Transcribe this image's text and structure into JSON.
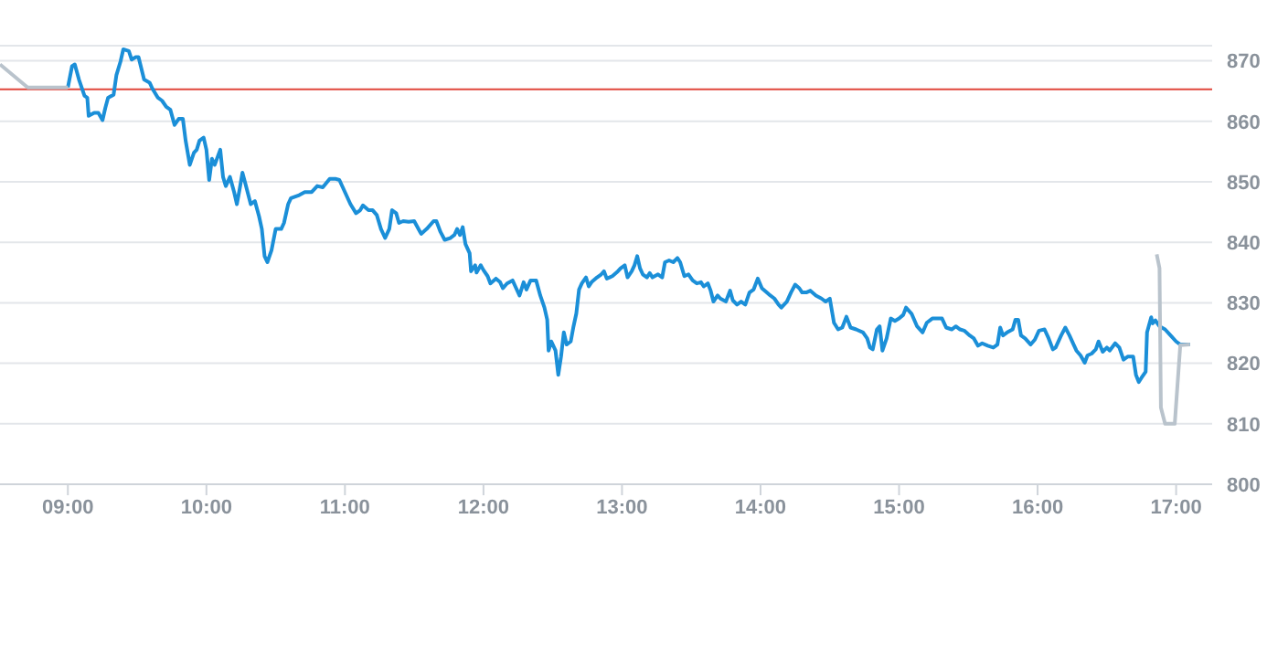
{
  "chart_data": {
    "type": "line",
    "xlim": [
      8.51,
      17.26
    ],
    "ylim": [
      800,
      872.5
    ],
    "xticks": [
      {
        "value": 9,
        "label": "09:00"
      },
      {
        "value": 10,
        "label": "10:00"
      },
      {
        "value": 11,
        "label": "11:00"
      },
      {
        "value": 12,
        "label": "12:00"
      },
      {
        "value": 13,
        "label": "13:00"
      },
      {
        "value": 14,
        "label": "14:00"
      },
      {
        "value": 15,
        "label": "15:00"
      },
      {
        "value": 16,
        "label": "16:00"
      },
      {
        "value": 17,
        "label": "17:00"
      }
    ],
    "yticks": [
      800,
      810,
      820,
      830,
      840,
      850,
      860,
      870
    ],
    "grid": "y",
    "marker": "none",
    "line_style": "solid",
    "ref_lines": [
      {
        "axis": "y",
        "value": 865.3,
        "color": "#e0463b"
      }
    ],
    "series": [
      {
        "color": "#1b8fd8",
        "x": [
          9.0,
          9.03,
          9.05,
          9.08,
          9.12,
          9.14,
          9.15,
          9.19,
          9.22,
          9.25,
          9.27,
          9.29,
          9.33,
          9.35,
          9.38,
          9.4,
          9.44,
          9.46,
          9.49,
          9.51,
          9.55,
          9.59,
          9.61,
          9.65,
          9.68,
          9.71,
          9.74,
          9.77,
          9.8,
          9.83,
          9.85,
          9.88,
          9.91,
          9.93,
          9.95,
          9.98,
          10.0,
          10.02,
          10.04,
          10.06,
          10.1,
          10.12,
          10.14,
          10.17,
          10.2,
          10.22,
          10.24,
          10.26,
          10.28,
          10.32,
          10.35,
          10.38,
          10.4,
          10.42,
          10.44,
          10.47,
          10.5,
          10.54,
          10.56,
          10.59,
          10.61,
          10.67,
          10.71,
          10.76,
          10.8,
          10.84,
          10.89,
          10.93,
          10.96,
          11.0,
          11.04,
          11.08,
          11.11,
          11.13,
          11.17,
          11.2,
          11.23,
          11.26,
          11.29,
          11.32,
          11.34,
          11.37,
          11.39,
          11.42,
          11.46,
          11.5,
          11.55,
          11.59,
          11.64,
          11.66,
          11.69,
          11.72,
          11.76,
          11.79,
          11.81,
          11.83,
          11.85,
          11.87,
          11.9,
          11.91,
          11.94,
          11.95,
          11.98,
          12.0,
          12.03,
          12.05,
          12.09,
          12.12,
          12.14,
          12.17,
          12.21,
          12.23,
          12.26,
          12.29,
          12.31,
          12.34,
          12.38,
          12.41,
          12.44,
          12.46,
          12.47,
          12.49,
          12.52,
          12.54,
          12.56,
          12.58,
          12.6,
          12.63,
          12.65,
          12.67,
          12.69,
          12.71,
          12.74,
          12.76,
          12.78,
          12.82,
          12.85,
          12.87,
          12.89,
          12.91,
          12.93,
          12.97,
          12.99,
          13.02,
          13.04,
          13.07,
          13.09,
          13.11,
          13.13,
          13.15,
          13.18,
          13.2,
          13.22,
          13.26,
          13.29,
          13.31,
          13.34,
          13.37,
          13.4,
          13.42,
          13.45,
          13.48,
          13.51,
          13.54,
          13.57,
          13.59,
          13.62,
          13.64,
          13.66,
          13.69,
          13.71,
          13.75,
          13.78,
          13.8,
          13.83,
          13.86,
          13.89,
          13.92,
          13.95,
          13.98,
          14.01,
          14.06,
          14.1,
          14.13,
          14.15,
          14.19,
          14.22,
          14.25,
          14.28,
          14.3,
          14.33,
          14.36,
          14.4,
          14.44,
          14.47,
          14.5,
          14.53,
          14.56,
          14.59,
          14.62,
          14.65,
          14.69,
          14.74,
          14.77,
          14.79,
          14.81,
          14.84,
          14.86,
          14.88,
          14.91,
          14.94,
          14.97,
          15.0,
          15.03,
          15.05,
          15.09,
          15.13,
          15.17,
          15.2,
          15.24,
          15.31,
          15.34,
          15.38,
          15.41,
          15.44,
          15.47,
          15.51,
          15.54,
          15.57,
          15.6,
          15.64,
          15.68,
          15.71,
          15.73,
          15.75,
          15.78,
          15.82,
          15.84,
          15.86,
          15.88,
          15.91,
          15.95,
          15.98,
          16.01,
          16.05,
          16.08,
          16.11,
          16.13,
          16.17,
          16.2,
          16.23,
          16.26,
          16.28,
          16.31,
          16.34,
          16.36,
          16.39,
          16.42,
          16.44,
          16.47,
          16.5,
          16.52,
          16.56,
          16.59,
          16.62,
          16.65,
          16.69,
          16.71,
          16.73,
          16.75,
          16.78,
          16.79,
          16.82,
          16.83,
          16.85,
          16.88,
          16.92,
          16.96,
          17.0,
          17.03,
          17.07,
          17.1
        ],
        "values": [
          865.6,
          869.1,
          869.4,
          866.9,
          864.2,
          863.9,
          860.9,
          861.4,
          861.4,
          860.2,
          862.2,
          863.9,
          864.4,
          867.6,
          869.9,
          871.9,
          871.6,
          870.2,
          870.6,
          870.6,
          866.9,
          866.4,
          865.4,
          863.9,
          863.4,
          862.4,
          861.9,
          859.4,
          860.4,
          860.4,
          856.8,
          852.8,
          854.8,
          855.3,
          856.8,
          857.3,
          855.3,
          850.3,
          853.8,
          852.8,
          855.3,
          850.8,
          849.3,
          850.8,
          848.3,
          846.3,
          848.8,
          851.5,
          849.8,
          846.3,
          846.8,
          844.3,
          842.2,
          837.7,
          836.7,
          838.7,
          842.2,
          842.2,
          843.2,
          846.3,
          847.3,
          847.8,
          848.3,
          848.3,
          849.3,
          849.1,
          850.5,
          850.5,
          850.3,
          848.3,
          846.3,
          844.8,
          845.3,
          846.1,
          845.3,
          845.3,
          844.5,
          842.2,
          840.7,
          842.2,
          845.3,
          844.8,
          843.2,
          843.5,
          843.4,
          843.5,
          841.4,
          842.2,
          843.5,
          843.5,
          841.7,
          840.4,
          840.7,
          841.2,
          842.2,
          841.2,
          842.5,
          839.7,
          838.2,
          835.2,
          836.2,
          835.0,
          836.2,
          835.4,
          834.4,
          833.2,
          834.0,
          833.4,
          832.4,
          833.2,
          833.7,
          832.7,
          831.2,
          833.4,
          832.2,
          833.7,
          833.7,
          831.2,
          829.2,
          827.2,
          822.1,
          823.6,
          822.1,
          818.1,
          821.1,
          825.1,
          823.1,
          823.6,
          826.1,
          828.2,
          832.2,
          833.2,
          834.2,
          832.7,
          833.4,
          834.2,
          834.7,
          835.2,
          834.0,
          834.2,
          834.4,
          835.2,
          835.7,
          836.2,
          834.2,
          835.2,
          836.2,
          837.7,
          835.7,
          834.7,
          834.2,
          834.9,
          834.2,
          834.7,
          834.2,
          836.7,
          837.0,
          836.7,
          837.4,
          836.7,
          834.4,
          834.7,
          833.7,
          833.2,
          833.4,
          832.7,
          833.2,
          832.0,
          830.2,
          831.2,
          830.7,
          830.2,
          832.0,
          830.4,
          829.7,
          830.2,
          829.7,
          831.7,
          832.2,
          834.0,
          832.4,
          831.4,
          830.7,
          829.7,
          829.2,
          830.2,
          831.7,
          833.0,
          832.4,
          831.7,
          831.7,
          832.0,
          831.2,
          830.7,
          830.2,
          830.7,
          826.7,
          825.6,
          825.9,
          827.7,
          825.9,
          825.6,
          825.1,
          824.1,
          822.6,
          822.3,
          825.6,
          826.1,
          822.1,
          824.1,
          827.4,
          827.0,
          827.4,
          828.0,
          829.2,
          828.2,
          826.1,
          825.1,
          826.7,
          827.4,
          827.4,
          825.9,
          825.6,
          826.1,
          825.6,
          825.4,
          824.6,
          824.1,
          822.9,
          823.3,
          822.9,
          822.6,
          823.1,
          825.9,
          824.6,
          825.1,
          825.6,
          827.2,
          827.2,
          824.6,
          824.1,
          823.1,
          823.9,
          825.4,
          825.6,
          824.1,
          822.3,
          822.6,
          824.6,
          825.9,
          824.6,
          823.1,
          822.1,
          821.3,
          820.1,
          821.3,
          821.6,
          822.3,
          823.6,
          821.9,
          822.6,
          822.1,
          823.3,
          822.6,
          820.6,
          821.1,
          821.1,
          818.1,
          816.9,
          817.6,
          818.6,
          825.1,
          827.6,
          826.6,
          827.1,
          826.1,
          825.6,
          824.6,
          823.6,
          823.1,
          823.1,
          823.1
        ]
      },
      {
        "color": "#b9c3cc",
        "x": [
          8.51,
          8.71,
          9.0
        ],
        "values": [
          869.4,
          865.6,
          865.6
        ]
      },
      {
        "color": "#b9c3cc",
        "x": [
          16.86,
          16.88,
          16.89,
          16.92,
          16.99,
          17.03,
          17.1
        ],
        "values": [
          838.0,
          835.7,
          812.7,
          810.0,
          810.0,
          823.0,
          823.1
        ]
      }
    ]
  }
}
